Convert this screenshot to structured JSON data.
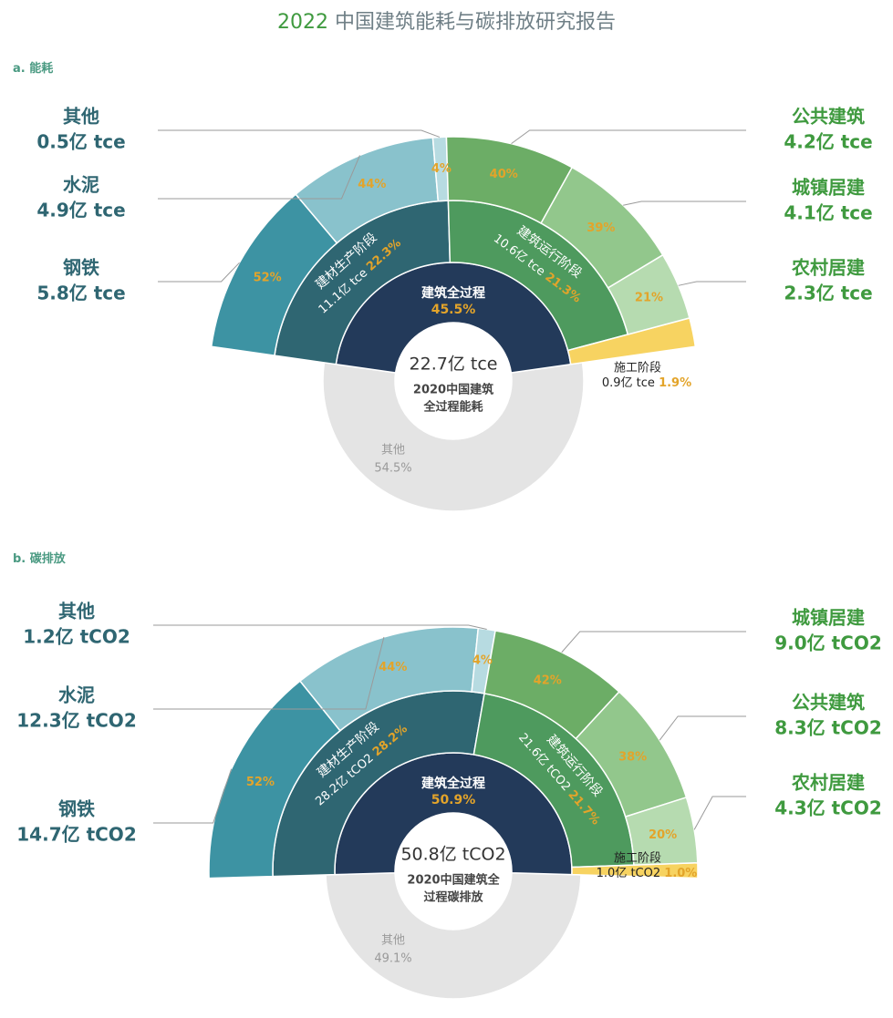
{
  "title": {
    "year": "2022",
    "text": "中国建筑能耗与碳排放研究报告"
  },
  "colors": {
    "steel": "#3d93a3",
    "cement": "#89c2cc",
    "other_material": "#b7dbe1",
    "material_stage": "#2f6672",
    "core": "#233a5a",
    "other_grey": "#e4e4e4",
    "ops_stage": "#4e9a5e",
    "ops_1": "#6cad66",
    "ops_2": "#92c78c",
    "ops_3": "#b6dbb0",
    "construction": "#f7d361",
    "pct": "#e3a42a",
    "blue_text": "#2f6672",
    "green_text": "#3f9a3f"
  },
  "chart_data": [
    {
      "type": "pie",
      "panel_label": "a. 能耗",
      "center": {
        "value": "22.7亿 tce",
        "caption": [
          "2020中国建筑",
          "全过程能耗"
        ]
      },
      "whole_process": {
        "label": "建筑全过程",
        "pct": "45.5%",
        "value": 45.5
      },
      "other": {
        "label": "其他",
        "pct": "54.5%",
        "value": 54.5
      },
      "stages": [
        {
          "key": "material",
          "name": "建材生产阶段",
          "amount": "11.1亿 tce",
          "pct": "22.3%",
          "value": 22.3
        },
        {
          "key": "operation",
          "name": "建筑运行阶段",
          "amount": "10.6亿 tce",
          "pct": "21.3%",
          "value": 21.3
        },
        {
          "key": "construction",
          "name": "施工阶段",
          "amount": "0.9亿 tce",
          "pct": "1.9%",
          "value": 1.9
        }
      ],
      "material_breakdown": [
        {
          "name": "钢铁",
          "amount": "5.8亿 tce",
          "pct": "52%",
          "value": 52
        },
        {
          "name": "水泥",
          "amount": "4.9亿 tce",
          "pct": "44%",
          "value": 44
        },
        {
          "name": "其他",
          "amount": "0.5亿 tce",
          "pct": "4%",
          "value": 4
        }
      ],
      "operation_breakdown": [
        {
          "name": "公共建筑",
          "amount": "4.2亿 tce",
          "pct": "40%",
          "value": 40
        },
        {
          "name": "城镇居建",
          "amount": "4.1亿 tce",
          "pct": "39%",
          "value": 39
        },
        {
          "name": "农村居建",
          "amount": "2.3亿 tce",
          "pct": "21%",
          "value": 21
        }
      ]
    },
    {
      "type": "pie",
      "panel_label": "b. 碳排放",
      "center": {
        "value": "50.8亿 tCO2",
        "caption": [
          "2020中国建筑全",
          "过程碳排放"
        ]
      },
      "whole_process": {
        "label": "建筑全过程",
        "pct": "50.9%",
        "value": 50.9
      },
      "other": {
        "label": "其他",
        "pct": "49.1%",
        "value": 49.1
      },
      "stages": [
        {
          "key": "material",
          "name": "建材生产阶段",
          "amount": "28.2亿 tCO2",
          "pct": "28.2%",
          "value": 28.2
        },
        {
          "key": "operation",
          "name": "建筑运行阶段",
          "amount": "21.6亿 tCO2",
          "pct": "21.7%",
          "value": 21.7
        },
        {
          "key": "construction",
          "name": "施工阶段",
          "amount": "1.0亿 tCO2",
          "pct": "1.0%",
          "value": 1.0
        }
      ],
      "material_breakdown": [
        {
          "name": "钢铁",
          "amount": "14.7亿 tCO2",
          "pct": "52%",
          "value": 52
        },
        {
          "name": "水泥",
          "amount": "12.3亿 tCO2",
          "pct": "44%",
          "value": 44
        },
        {
          "name": "其他",
          "amount": "1.2亿 tCO2",
          "pct": "4%",
          "value": 4
        }
      ],
      "operation_breakdown": [
        {
          "name": "城镇居建",
          "amount": "9.0亿 tCO2",
          "pct": "42%",
          "value": 42
        },
        {
          "name": "公共建筑",
          "amount": "8.3亿 tCO2",
          "pct": "38%",
          "value": 38
        },
        {
          "name": "农村居建",
          "amount": "4.3亿 tCO2",
          "pct": "20%",
          "value": 20
        }
      ]
    }
  ]
}
